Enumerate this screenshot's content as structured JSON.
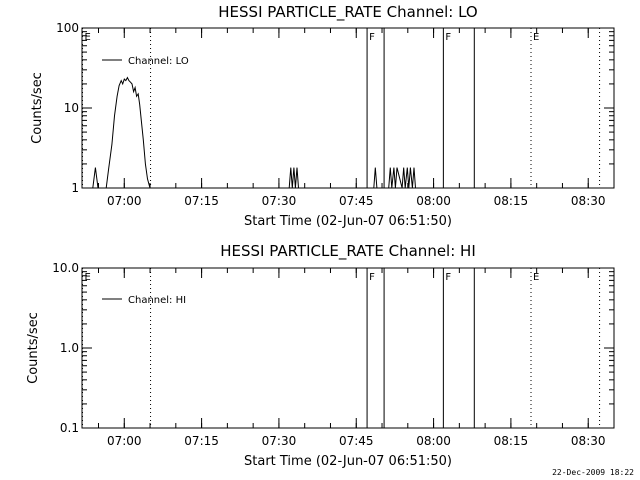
{
  "chart_data": [
    {
      "type": "line",
      "title": "HESSI PARTICLE_RATE Channel: LO",
      "xlabel": "Start Time (02-Jun-07 06:51:50)",
      "ylabel": "Counts/sec",
      "yscale": "log",
      "ylim": [
        1,
        100
      ],
      "y_ticks": [
        "1",
        "10",
        "100"
      ],
      "x_ticks": [
        "07:00",
        "07:15",
        "07:30",
        "07:45",
        "08:00",
        "08:15",
        "08:30"
      ],
      "x_tick_minutes": [
        420,
        435,
        450,
        465,
        480,
        495,
        510
      ],
      "xlim_minutes": [
        411.8,
        515.0
      ],
      "legend": {
        "label": "Channel: LO",
        "placement": "top-left"
      },
      "series": [
        {
          "name": "Channel: LO",
          "x_minutes": [
            413.9,
            414.4,
            414.9,
            416.5,
            417.0,
            417.6,
            418.1,
            418.6,
            419.0,
            419.4,
            419.7,
            420.0,
            420.3,
            420.6,
            420.9,
            421.2,
            421.5,
            421.8,
            422.1,
            422.4,
            422.7,
            423.0,
            423.3,
            423.7,
            424.1,
            424.5,
            425.0,
            425.5,
            452.0,
            452.3,
            452.6,
            452.9,
            453.2,
            453.5,
            453.8,
            468.4,
            468.7,
            469.0,
            469.4,
            471.3,
            471.6,
            471.9,
            472.3,
            472.6,
            472.9,
            473.9,
            474.2,
            474.5,
            474.9,
            475.2,
            475.5,
            475.9,
            476.2,
            476.5,
            476.8
          ],
          "y": [
            1,
            1.8,
            1,
            1,
            1.8,
            3.5,
            8,
            14,
            19,
            22,
            20,
            23,
            22,
            24,
            22,
            21,
            20,
            16,
            18,
            14,
            15,
            11,
            7,
            4,
            2,
            1.3,
            1,
            1,
            1,
            1.8,
            1,
            1.8,
            1,
            1.8,
            1,
            1,
            1.8,
            1,
            1,
            1,
            1.8,
            1,
            1.8,
            1,
            1.8,
            1,
            1.8,
            1,
            1.8,
            1,
            1.8,
            1,
            1.8,
            1,
            1
          ]
        }
      ],
      "markers": [
        {
          "minute": 411.9,
          "style": "dotted",
          "label": "E"
        },
        {
          "minute": 425.1,
          "style": "dotted",
          "label": ""
        },
        {
          "minute": 467.1,
          "style": "solid",
          "label": "F"
        },
        {
          "minute": 470.4,
          "style": "solid",
          "label": ""
        },
        {
          "minute": 481.9,
          "style": "solid",
          "label": "F"
        },
        {
          "minute": 487.9,
          "style": "solid",
          "label": ""
        },
        {
          "minute": 498.9,
          "style": "dotted",
          "label": "E"
        },
        {
          "minute": 512.2,
          "style": "dotted",
          "label": ""
        }
      ]
    },
    {
      "type": "line",
      "title": "HESSI PARTICLE_RATE Channel: HI",
      "xlabel": "Start Time (02-Jun-07 06:51:50)",
      "ylabel": "Counts/sec",
      "yscale": "log",
      "ylim": [
        0.1,
        10
      ],
      "y_ticks": [
        "0.1",
        "1.0",
        "10.0"
      ],
      "x_ticks": [
        "07:00",
        "07:15",
        "07:30",
        "07:45",
        "08:00",
        "08:15",
        "08:30"
      ],
      "x_tick_minutes": [
        420,
        435,
        450,
        465,
        480,
        495,
        510
      ],
      "xlim_minutes": [
        411.8,
        515.0
      ],
      "legend": {
        "label": "Channel: HI",
        "placement": "top-left"
      },
      "series": [
        {
          "name": "Channel: HI",
          "x_minutes": [],
          "y": []
        }
      ],
      "markers": [
        {
          "minute": 411.9,
          "style": "dotted",
          "label": "E"
        },
        {
          "minute": 425.1,
          "style": "dotted",
          "label": ""
        },
        {
          "minute": 467.1,
          "style": "solid",
          "label": "F"
        },
        {
          "minute": 470.4,
          "style": "solid",
          "label": ""
        },
        {
          "minute": 481.9,
          "style": "solid",
          "label": "F"
        },
        {
          "minute": 487.9,
          "style": "solid",
          "label": ""
        },
        {
          "minute": 498.9,
          "style": "dotted",
          "label": "E"
        },
        {
          "minute": 512.2,
          "style": "dotted",
          "label": ""
        }
      ]
    }
  ],
  "footer": {
    "timestamp": "22-Dec-2009 18:22"
  }
}
